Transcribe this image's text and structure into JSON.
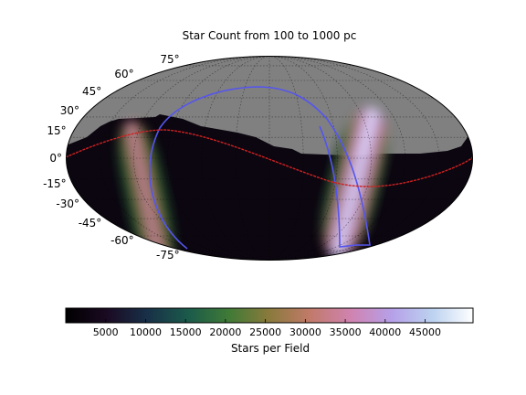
{
  "chart_data": {
    "type": "heatmap",
    "projection": "mollweide",
    "title": "Star Count from 100 to 1000 pc",
    "latitude_labels": [
      "75°",
      "60°",
      "45°",
      "30°",
      "15°",
      "0°",
      "-15°",
      "-30°",
      "-45°",
      "-60°",
      "-75°"
    ],
    "latitudes_deg": [
      75,
      60,
      45,
      30,
      15,
      0,
      -15,
      -30,
      -45,
      -60,
      -75
    ],
    "grid": true,
    "colorbar": {
      "label": "Stars per Field",
      "range": [
        0,
        51000
      ],
      "ticks": [
        5000,
        10000,
        15000,
        20000,
        25000,
        30000,
        35000,
        40000,
        45000
      ],
      "tick_labels": [
        "5000",
        "10000",
        "15000",
        "20000",
        "25000",
        "30000",
        "35000",
        "40000",
        "45000"
      ],
      "colormap": "cubehelix"
    },
    "overlays": [
      {
        "name": "galactic plane",
        "color": "#5555ee"
      },
      {
        "name": "ecliptic",
        "color": "#cc2222"
      }
    ],
    "colors": {
      "masked_region": "#808080",
      "background": "#ffffff"
    }
  }
}
